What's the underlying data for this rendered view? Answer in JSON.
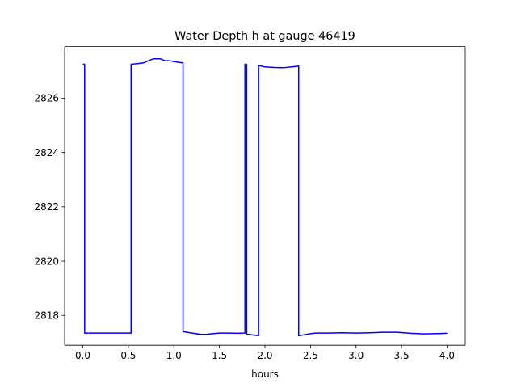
{
  "chart_data": {
    "type": "line",
    "title": "Water Depth h at gauge 46419",
    "xlabel": "hours",
    "ylabel": "",
    "xlim": [
      -0.2,
      4.2
    ],
    "ylim": [
      2816.9,
      2827.9
    ],
    "xticks": [
      0.0,
      0.5,
      1.0,
      1.5,
      2.0,
      2.5,
      3.0,
      3.5,
      4.0
    ],
    "xtick_labels": [
      "0.0",
      "0.5",
      "1.0",
      "1.5",
      "2.0",
      "2.5",
      "3.0",
      "3.5",
      "4.0"
    ],
    "yticks": [
      2818,
      2820,
      2822,
      2824,
      2826
    ],
    "ytick_labels": [
      "2818",
      "2820",
      "2822",
      "2824",
      "2826"
    ],
    "grid": false,
    "series": [
      {
        "color": "#0000ff",
        "x": [
          0.0,
          0.02,
          0.02,
          0.53,
          0.53,
          0.6,
          0.67,
          0.72,
          0.78,
          0.85,
          0.9,
          0.95,
          1.0,
          1.05,
          1.1,
          1.1,
          1.2,
          1.3,
          1.35,
          1.4,
          1.5,
          1.6,
          1.7,
          1.78,
          1.78,
          1.8,
          1.8,
          1.81,
          1.82,
          1.93,
          1.93,
          2.0,
          2.1,
          2.2,
          2.3,
          2.37,
          2.37,
          2.45,
          2.55,
          2.7,
          2.85,
          3.0,
          3.15,
          3.3,
          3.45,
          3.6,
          3.75,
          3.9,
          4.0
        ],
        "y": [
          2827.25,
          2827.25,
          2817.35,
          2817.35,
          2827.25,
          2827.27,
          2827.3,
          2827.38,
          2827.45,
          2827.45,
          2827.38,
          2827.38,
          2827.35,
          2827.32,
          2827.3,
          2817.4,
          2817.35,
          2817.3,
          2817.3,
          2817.32,
          2817.35,
          2817.35,
          2817.34,
          2817.35,
          2827.25,
          2827.25,
          2817.3,
          2817.3,
          2817.3,
          2817.25,
          2827.2,
          2827.15,
          2827.13,
          2827.12,
          2827.15,
          2827.18,
          2817.25,
          2817.3,
          2817.35,
          2817.35,
          2817.36,
          2817.35,
          2817.36,
          2817.38,
          2817.38,
          2817.34,
          2817.32,
          2817.33,
          2817.34
        ]
      }
    ]
  }
}
